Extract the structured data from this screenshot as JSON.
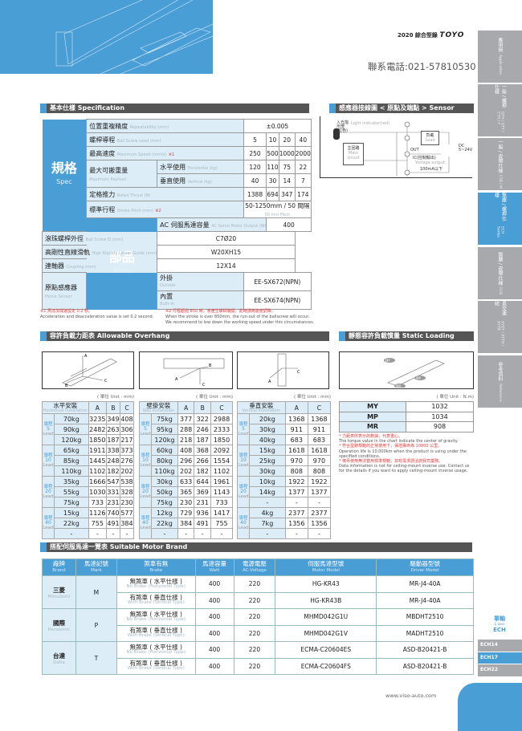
{
  "header": {
    "catalog": "2020 綜合型錄",
    "brand": "TOYO",
    "phone": "聯系電話:021-57810530"
  },
  "side_tabs": [
    {
      "zh": "應用例",
      "en": "Application",
      "active": false
    },
    {
      "zh": "一般 / 螺桿仕樣",
      "en": "GTH / GTY / ETH / Y",
      "active": false
    },
    {
      "zh": "一般 / 皮帶仕樣",
      "en": "ETB / M",
      "active": false
    },
    {
      "zh": "無塵 / 螺桿仕樣",
      "en": "ECH Series",
      "active": true
    },
    {
      "zh": "無塵 / 皮帶仕樣",
      "en": "ECB",
      "active": false
    },
    {
      "zh": "直交連結",
      "en": "XYGT / XYTH / XYTB",
      "active": false
    },
    {
      "zh": "參考資料",
      "en": "Reference",
      "active": false
    }
  ],
  "series_nav": {
    "zh": "單軸",
    "en": "1 axis",
    "name": "ECH",
    "items": [
      {
        "label": "ECH14",
        "active": false
      },
      {
        "label": "ECH17",
        "active": true
      },
      {
        "label": "ECH22",
        "active": false
      }
    ]
  },
  "spec": {
    "title": "基本仕樣 Specification",
    "group1": {
      "zh": "規格",
      "en": "Spec"
    },
    "group2": {
      "zh": "部品",
      "en": "Parts"
    },
    "repeat": {
      "zh": "位置重複精度",
      "en": "Repeatability (mm)",
      "value": "±0.005"
    },
    "lead": {
      "zh": "螺桿導程",
      "en": "Ball Screw Lead (mm)",
      "values": [
        "5",
        "10",
        "20",
        "40"
      ]
    },
    "speed": {
      "zh": "最高速度",
      "en": "Maximum Speed (mm/s)",
      "mark": "※1",
      "values": [
        "250",
        "500",
        "1000",
        "2000"
      ]
    },
    "payload": {
      "zh": "最大可搬重量",
      "en": "Maximum Payload",
      "h_zh": "水平使用",
      "h_en": "Horizontal (kg)",
      "h_values": [
        "120",
        "110",
        "75",
        "22"
      ],
      "v_zh": "垂直使用",
      "v_en": "Vertical (kg)",
      "v_values": [
        "40",
        "30",
        "14",
        "7"
      ]
    },
    "thrust": {
      "zh": "定格推力",
      "en": "Rated Thrust (N)",
      "values": [
        "1388",
        "694",
        "347",
        "174"
      ]
    },
    "stroke": {
      "zh": "標準行程",
      "en": "Stroke Pitch (mm)",
      "mark": "※2",
      "value": "50-1250mm / 50 間隔",
      "value_en": "50 mm Pitch"
    },
    "motor": {
      "zh": "AC 伺服馬達容量",
      "en": "AC Servo Motor Output (W)",
      "value": "400"
    },
    "screw": {
      "zh": "滾珠螺桿外徑",
      "en": "Ball Screw Ø (mm)",
      "value": "C7Ø20"
    },
    "guide": {
      "zh": "高剛性直線滑軌",
      "en": "High Rigidity Linear Guide (mm)",
      "value": "W20XH15"
    },
    "coupling": {
      "zh": "連軸器",
      "en": "Coupling (mm)",
      "value": "12X14"
    },
    "sensor": {
      "zh": "原點感應器",
      "en": "Home Sensor",
      "out_zh": "外掛",
      "out_en": "Outside",
      "out_value": "EE-SX672(NPN)",
      "in_zh": "內置",
      "in_en": "Built-In",
      "in_value": "EE-SX674(NPN)"
    },
    "note1_zh": "※1 馬達加減速設定 0.2 秒。",
    "note1_en": "Acceleration and deacceleration value is set 0.2 second.",
    "note2_zh": "※2 行程超過 850 時，會產生螺桿偏擺，此時請將速度調降。",
    "note2_en": "When the stroke is over 850mm, the run-out of the ballscrew will occur.",
    "note2_en2": "We recommend to low down   the working speed under this circumstances."
  },
  "sensor_layout": {
    "title": "感應器接線圖 < 原點及端點 > Sensor Layout",
    "light": "Light indicator(red)",
    "lamp": "入光指示燈(紅色)",
    "main_zh": "主回路",
    "main_en": "Main circuit",
    "load_zh": "負載",
    "load_en": "Load",
    "out": "OUT",
    "ic": "IC(控制輸出)",
    "vout": "Voltage output",
    "ma": "100mA以下",
    "dc": "DC 5~24V",
    "plus": "⊕",
    "minus": "⊖"
  },
  "overhang": {
    "title": "容許負載力距表 Allowable Overhang",
    "unit": "( 單位 Unit : mm)",
    "lead_zh": "導程",
    "lead_en": "Lead",
    "tables": [
      {
        "zh": "水平安裝",
        "en": "Horizontal Installation",
        "cols": [
          "A",
          "B",
          "C"
        ],
        "groups": [
          {
            "lead": "5",
            "rows": [
              [
                "70kg",
                "3235",
                "349",
                "408"
              ],
              [
                "90kg",
                "2482",
                "263",
                "306"
              ],
              [
                "120kg",
                "1850",
                "187",
                "217"
              ]
            ]
          },
          {
            "lead": "10",
            "rows": [
              [
                "65kg",
                "1911",
                "338",
                "373"
              ],
              [
                "85kg",
                "1445",
                "248",
                "276"
              ],
              [
                "110kg",
                "1102",
                "182",
                "202"
              ]
            ]
          },
          {
            "lead": "20",
            "rows": [
              [
                "35kg",
                "1666",
                "547",
                "538"
              ],
              [
                "55kg",
                "1030",
                "331",
                "328"
              ],
              [
                "75kg",
                "733",
                "231",
                "230"
              ]
            ]
          },
          {
            "lead": "40",
            "rows": [
              [
                "15kg",
                "1126",
                "740",
                "577"
              ],
              [
                "22kg",
                "755",
                "491",
                "384"
              ],
              [
                "-",
                "-",
                "-",
                "-"
              ]
            ]
          }
        ]
      },
      {
        "zh": "壁掛安裝",
        "en": "Wall Installation",
        "cols": [
          "A",
          "B",
          "C"
        ],
        "groups": [
          {
            "lead": "5",
            "rows": [
              [
                "75kg",
                "377",
                "322",
                "2988"
              ],
              [
                "95kg",
                "288",
                "246",
                "2333"
              ],
              [
                "120kg",
                "218",
                "187",
                "1850"
              ]
            ]
          },
          {
            "lead": "10",
            "rows": [
              [
                "60kg",
                "408",
                "368",
                "2092"
              ],
              [
                "80kg",
                "296",
                "266",
                "1554"
              ],
              [
                "110kg",
                "202",
                "182",
                "1102"
              ]
            ]
          },
          {
            "lead": "20",
            "rows": [
              [
                "30kg",
                "633",
                "644",
                "1961"
              ],
              [
                "50kg",
                "365",
                "369",
                "1143"
              ],
              [
                "75kg",
                "230",
                "231",
                "733"
              ]
            ]
          },
          {
            "lead": "40",
            "rows": [
              [
                "12kg",
                "729",
                "936",
                "1417"
              ],
              [
                "22kg",
                "384",
                "491",
                "755"
              ],
              [
                "-",
                "-",
                "-",
                "-"
              ]
            ]
          }
        ]
      },
      {
        "zh": "垂直安裝",
        "en": "Vertical Installation",
        "cols": [
          "A",
          "C"
        ],
        "groups": [
          {
            "lead": "5",
            "rows": [
              [
                "20kg",
                "1368",
                "1368"
              ],
              [
                "30kg",
                "911",
                "911"
              ],
              [
                "40kg",
                "683",
                "683"
              ]
            ]
          },
          {
            "lead": "10",
            "rows": [
              [
                "15kg",
                "1618",
                "1618"
              ],
              [
                "25kg",
                "970",
                "970"
              ],
              [
                "30kg",
                "808",
                "808"
              ]
            ]
          },
          {
            "lead": "20",
            "rows": [
              [
                "10kg",
                "1922",
                "1922"
              ],
              [
                "14kg",
                "1377",
                "1377"
              ],
              [
                "-",
                "-",
                "-"
              ]
            ]
          },
          {
            "lead": "40",
            "rows": [
              [
                "4kg",
                "2377",
                "2377"
              ],
              [
                "7kg",
                "1356",
                "1356"
              ],
              [
                "-",
                "-",
                "-"
              ]
            ]
          }
        ]
      }
    ]
  },
  "static_moment": {
    "title": "靜態容許負載慣量 Static Loading Moment",
    "unit": "( 單位 Unit : N.m)",
    "rows": [
      [
        "MY",
        "1032"
      ],
      [
        "MP",
        "1034"
      ],
      [
        "MR",
        "908"
      ]
    ],
    "n1_zh": "* 力距表所表示的數據，代表重心。",
    "n1_en": "The torque value in the chart indicate the center of gravity.",
    "n2_zh": "* 符合型錄規範的正常使用下，保證壽命為 10000 公里。",
    "n2_en": "Operation life is 10,000km when the product is using under the specified conditions.",
    "n3_zh": "* 倒吊使用無法套用標準規範，如有需求請洽詢我司業務。",
    "n3_en": "Data information is not for ceiling-mount inverse use. Contact us for the details if you want to apply ceiling-mount inverse usage."
  },
  "motor_brand": {
    "title": "搭配伺服馬達一覽表 Suitable Motor Brand",
    "headers": [
      [
        "廠牌",
        "Brand"
      ],
      [
        "馬達記號",
        "Mark"
      ],
      [
        "煞車有無",
        "Brake"
      ],
      [
        "馬達容量",
        "Watt"
      ],
      [
        "電源電壓",
        "AC-Voltage"
      ],
      [
        "伺服馬達型號",
        "Motor Model"
      ],
      [
        "驅動器型號",
        "Driver Model"
      ]
    ],
    "brands": [
      {
        "zh": "三菱",
        "en": "Mitsubishi",
        "mark": "M",
        "rows": [
          {
            "brake_zh": "無煞車 ( 水平仕樣 )",
            "brake_en": "No Brake (Horizontal Type)",
            "watt": "400",
            "volt": "220",
            "motor": "HG-KR43",
            "driver": "MR-J4-40A"
          },
          {
            "brake_zh": "有煞車 ( 垂直仕樣 )",
            "brake_en": "With Brake (Vertical Type)",
            "watt": "400",
            "volt": "220",
            "motor": "HG-KR43B",
            "driver": "MR-J4-40A"
          }
        ]
      },
      {
        "zh": "國際",
        "en": "Panasonic",
        "mark": "P",
        "rows": [
          {
            "brake_zh": "無煞車 ( 水平仕樣 )",
            "brake_en": "No Brake (Horizontal Type)",
            "watt": "400",
            "volt": "220",
            "motor": "MHMD042G1U",
            "driver": "MBDHT2510"
          },
          {
            "brake_zh": "有煞車 ( 垂直仕樣 )",
            "brake_en": "With Brake (Vertical Type)",
            "watt": "400",
            "volt": "220",
            "motor": "MHMD042G1V",
            "driver": "MADHT2510"
          }
        ]
      },
      {
        "zh": "台達",
        "en": "Delta",
        "mark": "T",
        "rows": [
          {
            "brake_zh": "無煞車 ( 水平仕樣 )",
            "brake_en": "No Brake (Horizontal Type)",
            "watt": "400",
            "volt": "220",
            "motor": "ECMA-C20604ES",
            "driver": "ASD-B20421-B"
          },
          {
            "brake_zh": "有煞車 ( 垂直仕樣 )",
            "brake_en": "With Brake (Vertical Type)",
            "watt": "400",
            "volt": "220",
            "motor": "ECMA-C20604FS",
            "driver": "ASD-B20421-B"
          }
        ]
      }
    ]
  },
  "footer": {
    "url": "www.viso-auto.com"
  },
  "colors": {
    "accent": "#4a9ed6",
    "bar": "#555555",
    "cell": "#dcedf8",
    "tab": "#a7a9ac",
    "note": "#e23b3b"
  }
}
